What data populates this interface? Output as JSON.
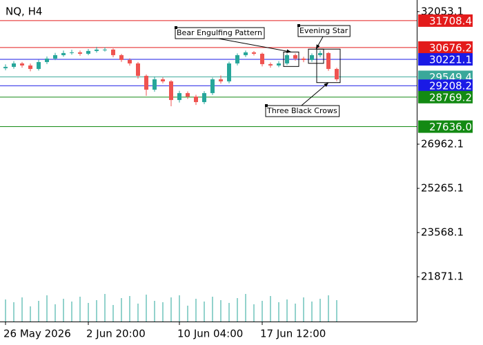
{
  "chart_data": {
    "type": "candlestick",
    "title": "NQ, H4",
    "categories": [
      "26 May 2026",
      null,
      null,
      null,
      null,
      null,
      null,
      null,
      null,
      null,
      "2 Jun 20:00",
      null,
      null,
      null,
      null,
      null,
      null,
      null,
      null,
      null,
      null,
      "10 Jun 04:00",
      null,
      null,
      null,
      null,
      null,
      null,
      null,
      null,
      null,
      "17 Jun 12:00",
      null,
      null,
      null,
      null,
      null,
      null,
      null,
      null,
      null
    ],
    "open": [
      29880,
      29932,
      30064,
      29985,
      29852,
      30117,
      30250,
      30382,
      30462,
      30489,
      30435,
      30542,
      30595,
      30595,
      30382,
      30197,
      30064,
      29587,
      29056,
      29454,
      29375,
      28659,
      28924,
      28791,
      28579,
      28924,
      29454,
      29375,
      30064,
      30382,
      30489,
      30435,
      30037,
      29985,
      30064,
      30382,
      30250,
      30197,
      30382,
      30462,
      29852
    ],
    "high": [
      30030,
      30150,
      30120,
      30060,
      30200,
      30330,
      30470,
      30560,
      30590,
      30560,
      30620,
      30700,
      30680,
      30640,
      30430,
      30260,
      30120,
      29640,
      29560,
      29530,
      29420,
      29010,
      28990,
      28860,
      29000,
      29520,
      29600,
      30130,
      30450,
      30560,
      30540,
      30480,
      30100,
      30150,
      30440,
      30450,
      30320,
      30450,
      30560,
      30500,
      29900
    ],
    "low": [
      29800,
      29860,
      29900,
      29760,
      29790,
      30040,
      30190,
      30320,
      30400,
      30360,
      30380,
      30480,
      30520,
      30300,
      30120,
      29980,
      29480,
      28820,
      28980,
      29300,
      28420,
      28560,
      28700,
      28470,
      28500,
      28850,
      29290,
      29300,
      29990,
      30310,
      30370,
      29950,
      29900,
      29920,
      30000,
      30170,
      30110,
      30120,
      30300,
      29780,
      29380
    ],
    "close": [
      29932,
      30064,
      29985,
      29852,
      30117,
      30250,
      30382,
      30462,
      30489,
      30435,
      30542,
      30595,
      30595,
      30382,
      30197,
      30064,
      29587,
      29056,
      29454,
      29375,
      28659,
      28924,
      28791,
      28579,
      28924,
      29454,
      29375,
      30064,
      30382,
      30489,
      30435,
      30037,
      29985,
      30064,
      30382,
      30250,
      30197,
      30382,
      30462,
      29852,
      29454
    ],
    "volume": [
      32,
      28,
      35,
      22,
      30,
      38,
      25,
      33,
      29,
      36,
      27,
      31,
      40,
      24,
      34,
      37,
      26,
      39,
      30,
      28,
      35,
      38,
      23,
      33,
      29,
      36,
      31,
      27,
      34,
      40,
      25,
      30,
      37,
      28,
      32,
      26,
      35,
      29,
      33,
      38,
      31
    ],
    "vlim": [
      0,
      100
    ],
    "up_color": "#26a69a",
    "down_color": "#ef5350",
    "volume_color": "#26a69a",
    "ylim": [
      20150,
      32500
    ],
    "yticks": [
      32053.1,
      26962.1,
      25265.1,
      23568.1,
      21871.1
    ],
    "levels": [
      {
        "value": 31708.4,
        "color": "#e31b1b"
      },
      {
        "value": 30676.2,
        "color": "#e31b1b"
      },
      {
        "value": 30221.1,
        "color": "#1a1ae6"
      },
      {
        "value": 29549.4,
        "color": "#3aa89a"
      },
      {
        "value": 29208.2,
        "color": "#1a1ae6"
      },
      {
        "value": 28769.2,
        "color": "#138a13"
      },
      {
        "value": 27636.0,
        "label": "27636.0",
        "color": "#138a13"
      }
    ],
    "annotations": [
      {
        "text": "Bear Engulfing Pattern"
      },
      {
        "text": "Evening Star"
      },
      {
        "text": "Three Black Crows"
      }
    ]
  }
}
